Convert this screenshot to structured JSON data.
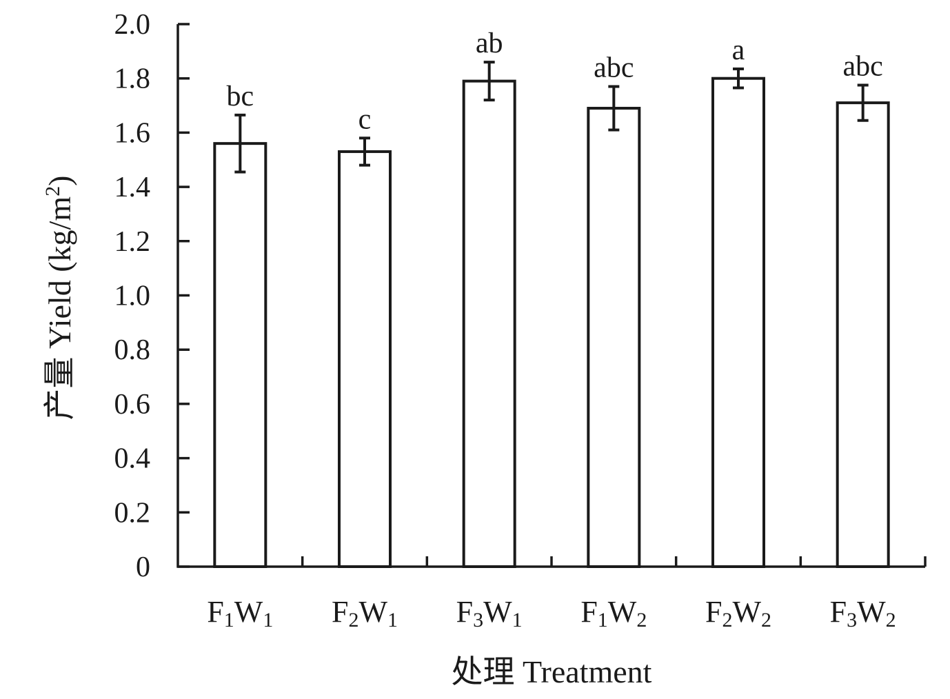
{
  "chart_data": {
    "type": "bar",
    "title": "",
    "ylabel": "产量 Yield (kg/m²)",
    "ylabel_parts": {
      "text": "产量 Yield (kg/m",
      "sup": "2",
      "close": ")"
    },
    "xlabel": "处理 Treatment",
    "ylim": [
      0,
      2.0
    ],
    "yticks": [
      "0",
      "0.2",
      "0.4",
      "0.6",
      "0.8",
      "1.0",
      "1.2",
      "1.4",
      "1.6",
      "1.8",
      "2.0"
    ],
    "categories": [
      {
        "label": "F1W1",
        "F": "F",
        "f_sub": "1",
        "W": "W",
        "w_sub": "1"
      },
      {
        "label": "F2W1",
        "F": "F",
        "f_sub": "2",
        "W": "W",
        "w_sub": "1"
      },
      {
        "label": "F3W1",
        "F": "F",
        "f_sub": "3",
        "W": "W",
        "w_sub": "1"
      },
      {
        "label": "F1W2",
        "F": "F",
        "f_sub": "1",
        "W": "W",
        "w_sub": "2"
      },
      {
        "label": "F2W2",
        "F": "F",
        "f_sub": "2",
        "W": "W",
        "w_sub": "2"
      },
      {
        "label": "F3W2",
        "F": "F",
        "f_sub": "3",
        "W": "W",
        "w_sub": "2"
      }
    ],
    "values": [
      1.56,
      1.53,
      1.79,
      1.69,
      1.8,
      1.71
    ],
    "errors": [
      0.105,
      0.05,
      0.07,
      0.08,
      0.035,
      0.065
    ],
    "significance": [
      "bc",
      "c",
      "ab",
      "abc",
      "a",
      "abc"
    ],
    "bar_fill": "#ffffff",
    "bar_stroke": "#1a1a1a",
    "grid": false,
    "legend": "none"
  }
}
